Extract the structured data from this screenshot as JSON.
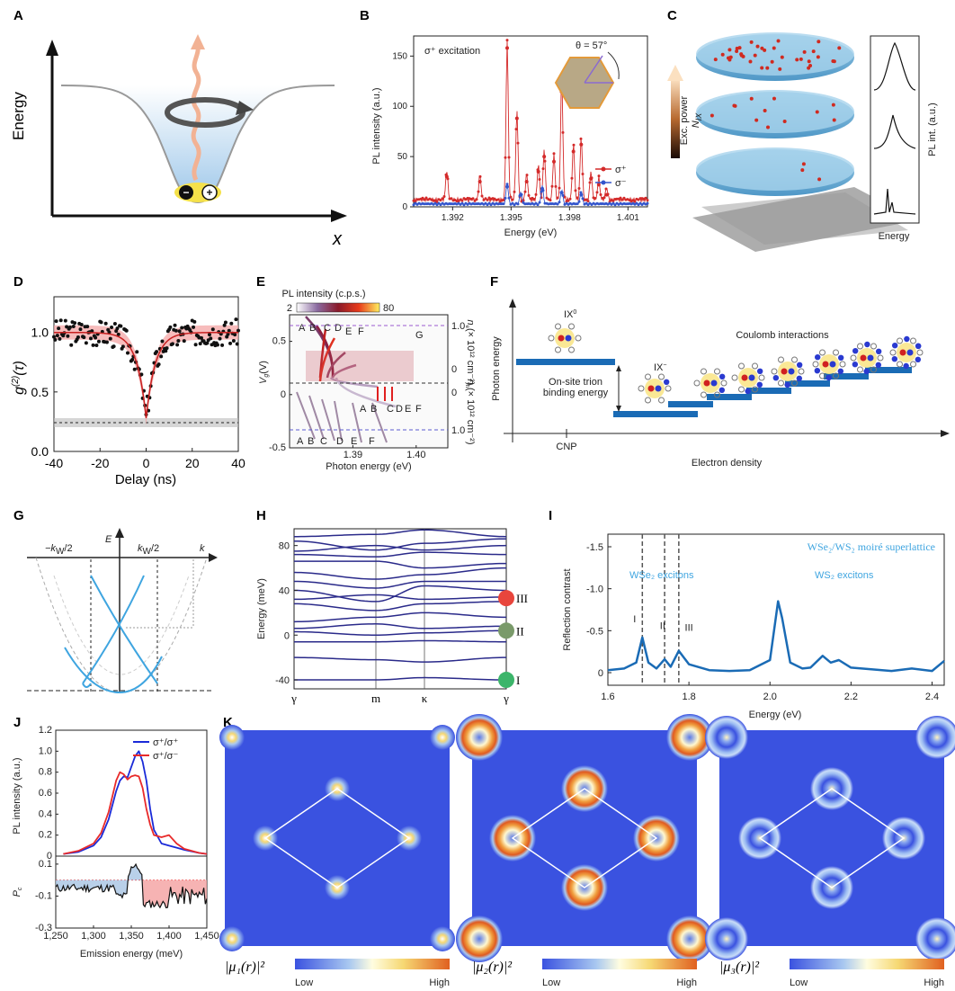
{
  "panels": [
    "A",
    "B",
    "C",
    "D",
    "E",
    "F",
    "G",
    "H",
    "I",
    "J",
    "K"
  ],
  "panelA": {
    "ylabel": "Energy",
    "xlabel": "x",
    "minus": "−",
    "plus": "+"
  },
  "panelB": {
    "annotation": "σ⁺ excitation",
    "theta": "θ = 57°",
    "legend": [
      "σ⁺",
      "σ⁻"
    ],
    "colors": {
      "sp": "#d42a2a",
      "sm": "#3355cc"
    }
  },
  "panelC": {
    "power_label": "Exc. power",
    "nix_label": "N",
    "nix_sub": "IX",
    "pl_label": "PL int. (a.u.)",
    "energy_label": "Energy"
  },
  "panelD": {
    "ylabel_main": "g",
    "ylabel_sup": "(2)",
    "ylabel_tail": "(τ)"
  },
  "panelE": {
    "cbar_title": "PL intensity (c.p.s.)",
    "cbar_min": "2",
    "cbar_max": "80",
    "ylabel": "V",
    "ylabel_sub": "g",
    "ylabel_unit": "(V)",
    "right_label_top": "n",
    "right_label_top_sub": "e",
    "right_label_top_tail": "(× 10¹² cm⁻²)",
    "right_label_bot": "n",
    "right_label_bot_sub": "h",
    "right_label_bot_tail": "(× 10¹² cm⁻²)",
    "upper_peaks": [
      "A",
      "B",
      "C",
      "D",
      "E",
      "F",
      "G"
    ],
    "middle_peaks": [
      "A",
      "B",
      "C",
      "D",
      "E",
      "F"
    ],
    "lower_peaks": [
      "A",
      "B",
      "C",
      "D",
      "E",
      "F"
    ]
  },
  "panelF": {
    "ylabel": "Photon energy",
    "xlabel": "Electron density",
    "cnp": "CNP",
    "ix0": "IX",
    "ix0_sup": "0",
    "ixm": "IX",
    "ixm_sup": "−",
    "trion1": "On-site trion",
    "trion2": "binding energy",
    "coulomb": "Coulomb interactions"
  },
  "panelG": {
    "E": "E",
    "k": "k",
    "kneg": "−k",
    "kpos": "k",
    "ksub": "W",
    "half": "/2"
  },
  "panelH": {
    "ylabel": "Energy (meV)",
    "xticks": [
      "γ",
      "m",
      "κ",
      "γ"
    ],
    "markers": [
      "III",
      "II",
      "I"
    ],
    "marker_colors": [
      "#e8453c",
      "#7a9a6a",
      "#3cb56a"
    ]
  },
  "panelI": {
    "ylabel": "Reflection contrast",
    "xlabel": "Energy (eV)",
    "title_text": "WSe₂/WS₂ moiré superlattice",
    "wse2": "WSe₂ excitons",
    "ws2": "WS₂ excitons",
    "peaks": [
      "I",
      "II",
      "III"
    ]
  },
  "panelJ": {
    "ylabel_top": "PL intensity (a.u.)",
    "ylabel_bot": "P",
    "ylabel_bot_sub": "c",
    "xlabel": "Emission energy (meV)",
    "legend": [
      "σ⁺/σ⁺",
      "σ⁺/σ⁻"
    ]
  },
  "panelK": {
    "labels": [
      "|μ₁(r)|²",
      "|μ₂(r)|²",
      "|μ₃(r)|²"
    ],
    "low": "Low",
    "high": "High"
  },
  "chart_data": [
    {
      "panel": "B",
      "type": "line",
      "title": "",
      "xlabel": "Energy (eV)",
      "ylabel": "PL intensity (a.u.)",
      "xlim": [
        1.39,
        1.402
      ],
      "ylim": [
        0,
        170
      ],
      "xticks": [
        1.392,
        1.395,
        1.398,
        1.401
      ],
      "yticks": [
        0,
        50,
        100,
        150
      ],
      "series": [
        {
          "name": "σ⁺",
          "peaks": [
            [
              1.3917,
              30
            ],
            [
              1.3934,
              25
            ],
            [
              1.3948,
              158
            ],
            [
              1.3953,
              88
            ],
            [
              1.3958,
              25
            ],
            [
              1.3964,
              35
            ],
            [
              1.3967,
              50
            ],
            [
              1.3972,
              45
            ],
            [
              1.3976,
              123
            ],
            [
              1.3982,
              55
            ],
            [
              1.3986,
              62
            ],
            [
              1.3991,
              28
            ],
            [
              1.3995,
              22
            ],
            [
              1.3999,
              12
            ]
          ]
        },
        {
          "name": "σ⁻",
          "peaks": [
            [
              1.3948,
              20
            ],
            [
              1.3955,
              12
            ],
            [
              1.3966,
              18
            ],
            [
              1.3976,
              14
            ],
            [
              1.3986,
              12
            ]
          ]
        }
      ]
    },
    {
      "panel": "D",
      "type": "scatter",
      "xlabel": "Delay (ns)",
      "ylabel": "g(2)(τ)",
      "xlim": [
        -40,
        40
      ],
      "ylim": [
        0,
        1.3
      ],
      "xticks": [
        -40,
        -20,
        0,
        20,
        40
      ],
      "yticks": [
        0,
        0.5,
        1.0
      ],
      "g2_min": 0.28,
      "baseline": 1.0,
      "threshold": 0.25
    },
    {
      "panel": "E",
      "type": "heatmap",
      "xlabel": "Photon energy (eV)",
      "ylabel": "Vg (V)",
      "xlim": [
        1.38,
        1.405
      ],
      "ylim": [
        -0.5,
        0.75
      ],
      "xticks": [
        1.39,
        1.4
      ],
      "yticks": [
        -0.5,
        0,
        0.5
      ],
      "right_ticks_top": [
        "1.0",
        "0"
      ],
      "right_ticks_bot": [
        "0",
        "1.0"
      ],
      "colorbar_range": [
        2,
        80
      ]
    },
    {
      "panel": "H",
      "type": "line",
      "ylabel": "Energy (meV)",
      "ylim": [
        -48,
        95
      ],
      "yticks": [
        -40,
        0,
        40,
        80
      ],
      "xticks": [
        "γ",
        "m",
        "κ",
        "γ"
      ]
    },
    {
      "panel": "I",
      "type": "line",
      "xlabel": "Energy (eV)",
      "ylabel": "Reflection contrast",
      "xlim": [
        1.6,
        2.43
      ],
      "ylim": [
        0.15,
        -1.65
      ],
      "xticks": [
        1.6,
        1.8,
        2.0,
        2.2,
        2.4
      ],
      "yticks": [
        -1.5,
        -1.0,
        -0.5,
        0
      ],
      "dashed_x": [
        1.685,
        1.74,
        1.775
      ],
      "x": [
        1.6,
        1.64,
        1.67,
        1.685,
        1.7,
        1.72,
        1.74,
        1.755,
        1.775,
        1.8,
        1.85,
        1.9,
        1.95,
        2.0,
        2.02,
        2.03,
        2.05,
        2.08,
        2.1,
        2.13,
        2.15,
        2.17,
        2.2,
        2.25,
        2.3,
        2.35,
        2.4,
        2.43
      ],
      "values": [
        -0.03,
        -0.05,
        -0.12,
        -0.42,
        -0.12,
        -0.05,
        -0.16,
        -0.07,
        -0.26,
        -0.1,
        -0.03,
        -0.02,
        -0.03,
        -0.15,
        -0.85,
        -0.65,
        -0.12,
        -0.05,
        -0.06,
        -0.2,
        -0.12,
        -0.15,
        -0.06,
        -0.04,
        -0.02,
        -0.05,
        -0.02,
        -0.14
      ]
    },
    {
      "panel": "J",
      "type": "line",
      "xlabel": "Emission energy (meV)",
      "ylabel": "PL intensity (a.u.)",
      "xlim": [
        1250,
        1450
      ],
      "ylim": [
        0,
        1.2
      ],
      "xticks": [
        1250,
        1300,
        1350,
        1400,
        1450
      ],
      "yticks": [
        0,
        0.2,
        0.4,
        0.6,
        0.8,
        1.0,
        1.2
      ],
      "x": [
        1260,
        1280,
        1300,
        1310,
        1320,
        1330,
        1335,
        1340,
        1345,
        1350,
        1355,
        1360,
        1365,
        1370,
        1375,
        1380,
        1390,
        1400,
        1410,
        1420,
        1440,
        1450
      ],
      "series": [
        {
          "name": "σ⁺/σ⁺",
          "values": [
            0.02,
            0.04,
            0.1,
            0.18,
            0.35,
            0.62,
            0.72,
            0.76,
            0.75,
            0.85,
            0.95,
            1.0,
            0.9,
            0.72,
            0.45,
            0.25,
            0.12,
            0.1,
            0.08,
            0.06,
            0.03,
            0.02
          ]
        },
        {
          "name": "σ⁺/σ⁻",
          "values": [
            0.02,
            0.05,
            0.12,
            0.22,
            0.42,
            0.72,
            0.8,
            0.78,
            0.73,
            0.76,
            0.77,
            0.76,
            0.65,
            0.45,
            0.3,
            0.2,
            0.18,
            0.2,
            0.12,
            0.07,
            0.03,
            0.02
          ]
        }
      ],
      "pc_ylim": [
        -0.3,
        0.15
      ],
      "pc_yticks": [
        -0.3,
        -0.1,
        0.1
      ]
    }
  ]
}
